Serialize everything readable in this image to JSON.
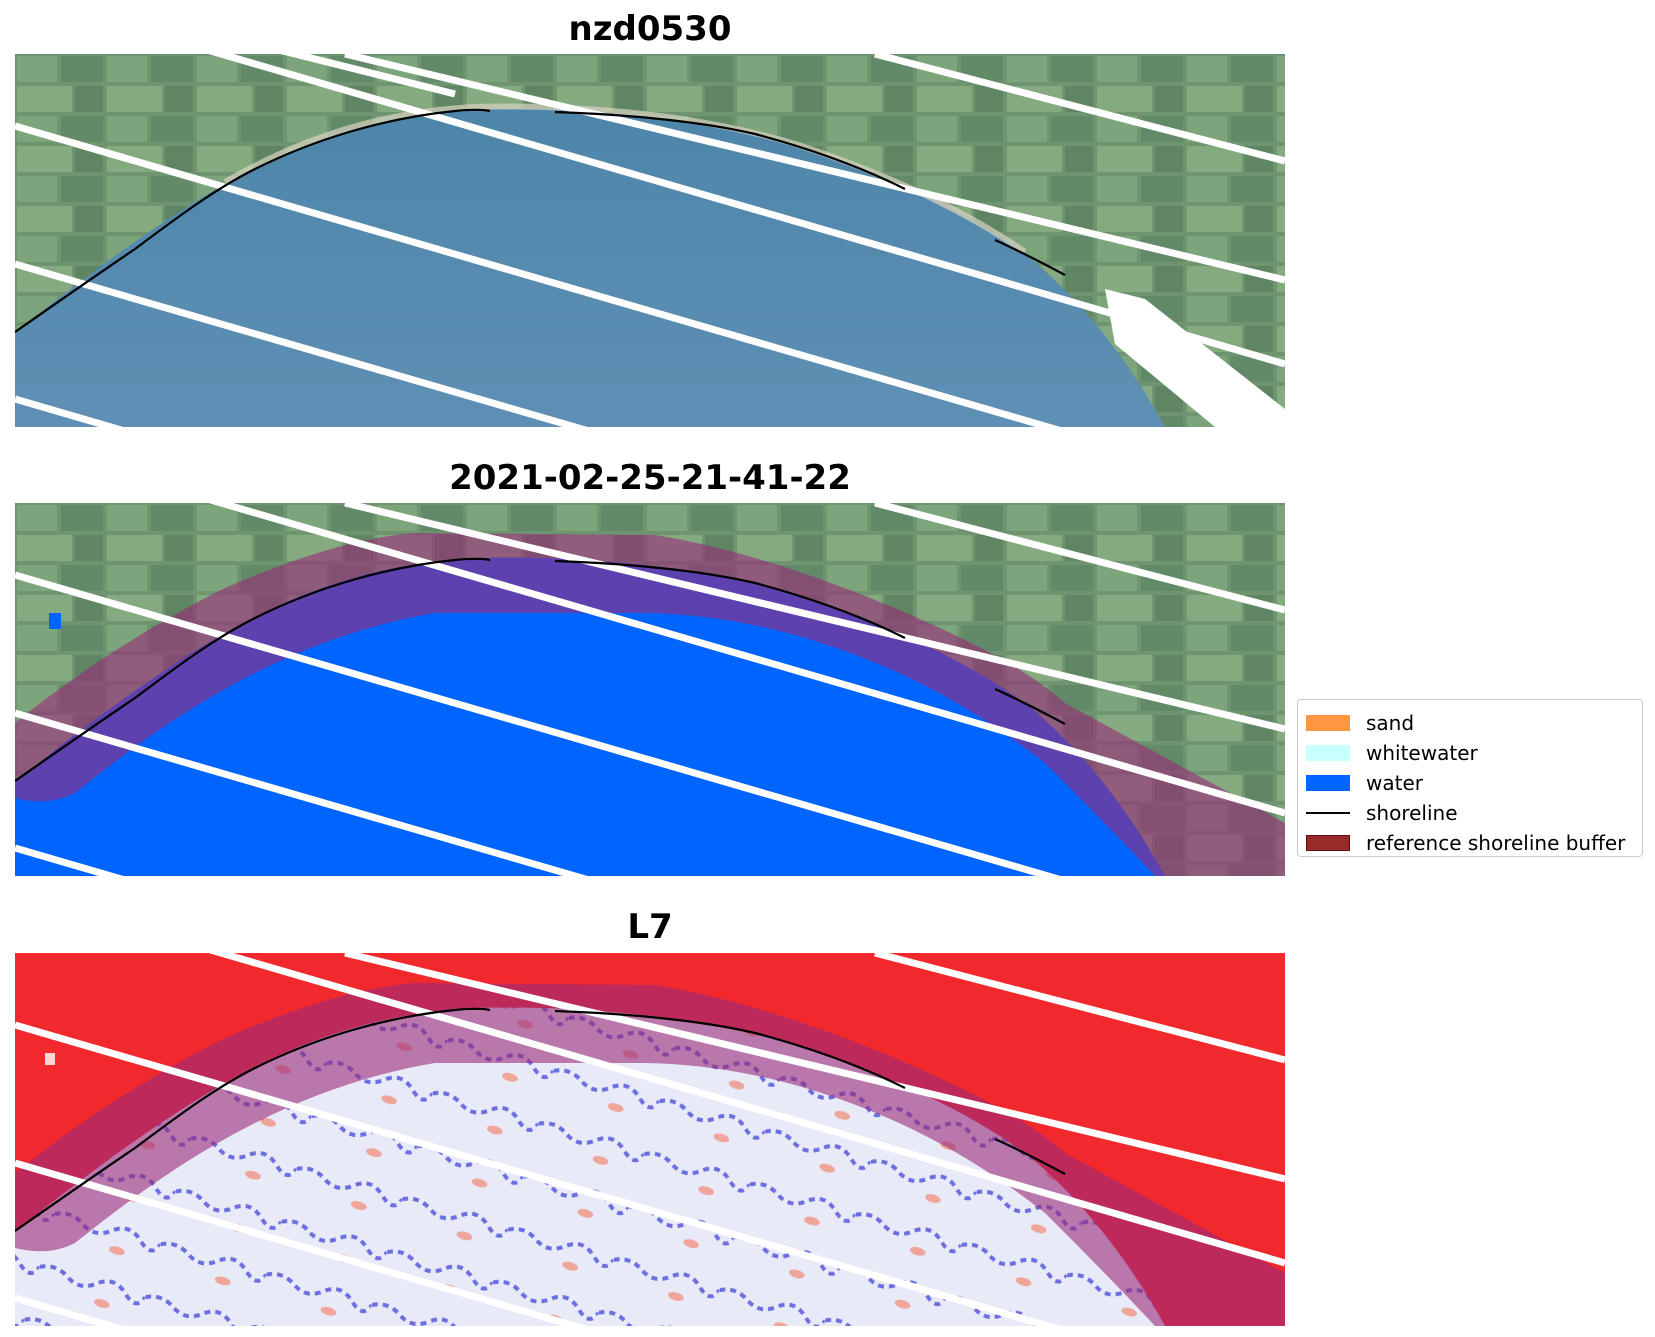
{
  "panels": [
    {
      "title": "nzd0530"
    },
    {
      "title": "2021-02-25-21-41-22"
    },
    {
      "title": "L7"
    }
  ],
  "legend": {
    "items": [
      {
        "label": "sand",
        "color": "#ff9640"
      },
      {
        "label": "whitewater",
        "color": "#c8ffff"
      },
      {
        "label": "water",
        "color": "#0064ff"
      },
      {
        "label": "shoreline",
        "color": "#000000"
      },
      {
        "label": "reference shoreline buffer",
        "color": "#9a2a2a"
      }
    ]
  }
}
